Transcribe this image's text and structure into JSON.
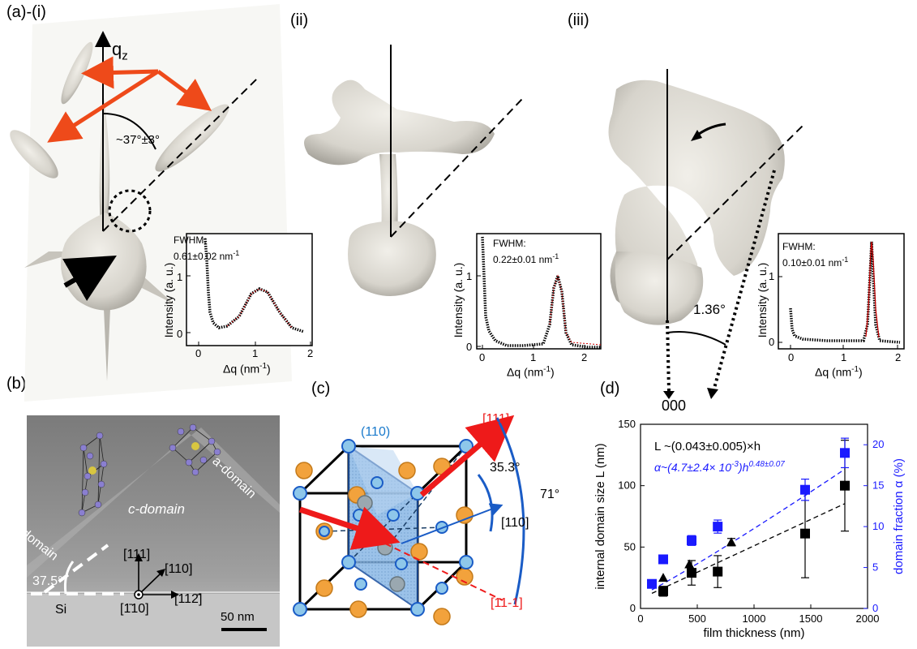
{
  "panels": {
    "a_label": "(a)-(i)",
    "ii_label": "(ii)",
    "iii_label": "(iii)",
    "b_label": "(b)",
    "c_label": "(c)",
    "d_label": "(d)"
  },
  "panel_a": {
    "axis_label": "q",
    "axis_sub": "z",
    "angle": "~37°±3°"
  },
  "panel_iii": {
    "angle": "1.36°",
    "origin": "000"
  },
  "insets": [
    {
      "fwhm_label": "FWHM:",
      "fwhm_value": "0.61±0.02 nm",
      "fwhm_unit_exp": "-1",
      "ylabel": "Intensity (a. u.)",
      "xlabel": "Δq (nm",
      "xlabel_exp": "-1",
      "xlabel_close": ")",
      "yticks": [
        "0",
        "1"
      ],
      "xticks": [
        "0",
        "1",
        "2"
      ]
    },
    {
      "fwhm_label": "FWHM:",
      "fwhm_value": "0.22±0.01 nm",
      "fwhm_unit_exp": "-1",
      "ylabel": "Intensity (a. u.)",
      "xlabel": "Δq (nm",
      "xlabel_exp": "-1",
      "xlabel_close": ")",
      "yticks": [
        "0",
        "1"
      ],
      "xticks": [
        "0",
        "1",
        "2"
      ]
    },
    {
      "fwhm_label": "FWHM:",
      "fwhm_value": "0.10±0.01 nm",
      "fwhm_unit_exp": "-1",
      "ylabel": "Intensity (a. u.)",
      "xlabel": "Δq (nm",
      "xlabel_exp": "-1",
      "xlabel_close": ")",
      "yticks": [
        "0",
        "1"
      ],
      "xticks": [
        "0",
        "1",
        "2"
      ]
    }
  ],
  "panel_b": {
    "c_domain": "c-domain",
    "a_domain_left": "a-domain",
    "a_domain_right": "a-domain",
    "angle": "37.5°",
    "dir_111": "[111]",
    "dir_110": "[110]",
    "dir_1m10": "[1̄10]",
    "dir_112": "[112̄]",
    "substrate": "Si",
    "scale": "50 nm"
  },
  "panel_c": {
    "plane": "(110)",
    "dir_111": "[111]",
    "dir_11m1": "[11-1]",
    "dir_110": "[110]",
    "angle_small": "35.3°",
    "angle_large": "71°"
  },
  "chart_data": {
    "type": "scatter",
    "xlabel": "film thickness (nm)",
    "ylabel": "internal domain size L (nm)",
    "y2label": "domain fraction α (%)",
    "xlim": [
      0,
      2000
    ],
    "ylim": [
      0,
      150
    ],
    "y2lim": [
      0,
      22.5
    ],
    "xticks": [
      "0",
      "500",
      "1000",
      "1500",
      "2000"
    ],
    "yticks": [
      "0",
      "50",
      "100",
      "150"
    ],
    "y2ticks": [
      "0",
      "5",
      "10",
      "15",
      "20"
    ],
    "fit_L": "L ~(0.043±0.005)×h",
    "fit_alpha": "α~(4.7±2.4× 10",
    "fit_alpha_exp": "-3",
    "fit_alpha_tail": ")h",
    "fit_alpha_exp2": "0.48±0.07",
    "series": [
      {
        "name": "L",
        "color": "#000000",
        "marker": "square",
        "x": [
          200,
          450,
          680,
          1450,
          1800
        ],
        "y": [
          14,
          29,
          30,
          61,
          100
        ],
        "err": [
          4,
          10,
          13,
          36,
          37
        ]
      },
      {
        "name": "L (triangle)",
        "color": "#000000",
        "marker": "triangle",
        "x": [
          200,
          430,
          800
        ],
        "y": [
          25,
          36,
          54
        ],
        "err": [
          0,
          0,
          3
        ]
      },
      {
        "name": "α",
        "color": "#1a1aff",
        "marker": "square",
        "x": [
          100,
          200,
          450,
          680,
          1450,
          1800
        ],
        "y": [
          3,
          6,
          8.3,
          10,
          14.5,
          19
        ],
        "err": [
          0.3,
          0.4,
          0.6,
          0.8,
          1.3,
          1.8
        ]
      }
    ]
  }
}
